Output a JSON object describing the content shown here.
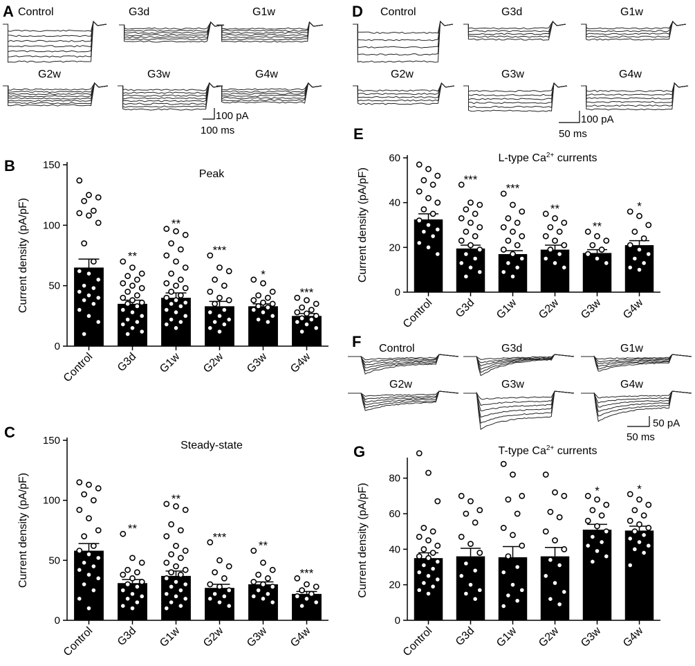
{
  "panels": {
    "A": {
      "letter": "A",
      "trace_labels": [
        "Control",
        "G3d",
        "G1w",
        "G2w",
        "G3w",
        "G4w"
      ],
      "scale": {
        "y": "100 pA",
        "x": "100 ms"
      }
    },
    "D": {
      "letter": "D",
      "trace_labels": [
        "Control",
        "G3d",
        "G1w",
        "G2w",
        "G3w",
        "G4w"
      ],
      "scale": {
        "y": "100 pA",
        "x": "50 ms"
      }
    },
    "F": {
      "letter": "F",
      "trace_labels": [
        "Control",
        "G3d",
        "G1w",
        "G2w",
        "G3w",
        "G4w"
      ],
      "scale": {
        "y": "50 pA",
        "x": "50 ms"
      }
    }
  },
  "chart_data": [
    {
      "id": "B",
      "letter": "B",
      "type": "bar",
      "title": "Peak",
      "ylabel": "Current density (pA/pF)",
      "ylim": [
        0,
        150
      ],
      "yticks": [
        0,
        50,
        100,
        150
      ],
      "categories": [
        "Control",
        "G3d",
        "G1w",
        "G2w",
        "G3w",
        "G4w"
      ],
      "values": [
        65,
        35,
        40,
        33,
        33,
        25
      ],
      "errors": [
        7,
        3,
        4,
        4,
        2,
        2
      ],
      "significance": [
        "",
        "**",
        "**",
        "***",
        "*",
        "***"
      ],
      "points": [
        [
          137,
          125,
          123,
          120,
          112,
          110,
          108,
          102,
          85,
          70,
          62,
          60,
          55,
          50,
          48,
          45,
          42,
          40,
          38,
          35,
          30,
          25,
          20,
          10
        ],
        [
          70,
          65,
          60,
          58,
          55,
          52,
          50,
          48,
          45,
          42,
          40,
          38,
          36,
          35,
          33,
          30,
          28,
          25,
          22,
          20,
          18,
          15,
          12,
          10
        ],
        [
          97,
          95,
          92,
          85,
          80,
          75,
          70,
          65,
          60,
          55,
          52,
          50,
          48,
          45,
          42,
          40,
          38,
          36,
          35,
          33,
          30,
          28,
          25,
          22,
          20,
          18,
          15
        ],
        [
          75,
          65,
          62,
          55,
          50,
          45,
          40,
          38,
          35,
          30,
          28,
          25,
          22,
          20,
          18,
          15,
          12
        ],
        [
          55,
          52,
          45,
          42,
          40,
          38,
          36,
          35,
          33,
          32,
          30,
          28,
          25,
          22,
          20
        ],
        [
          40,
          38,
          35,
          32,
          30,
          28,
          27,
          25,
          23,
          22,
          20,
          18,
          15,
          12
        ]
      ]
    },
    {
      "id": "C",
      "letter": "C",
      "type": "bar",
      "title": "Steady-state",
      "ylabel": "Current density (pA/pF)",
      "ylim": [
        0,
        150
      ],
      "yticks": [
        0,
        50,
        100,
        150
      ],
      "categories": [
        "Control",
        "G3d",
        "G1w",
        "G2w",
        "G3w",
        "G4w"
      ],
      "values": [
        58,
        31,
        37,
        27,
        30,
        22
      ],
      "errors": [
        6,
        3,
        4,
        3,
        2,
        2
      ],
      "significance": [
        "",
        "**",
        "**",
        "***",
        "**",
        "***"
      ],
      "points": [
        [
          115,
          113,
          110,
          105,
          100,
          92,
          85,
          75,
          70,
          62,
          58,
          55,
          52,
          48,
          45,
          42,
          38,
          35,
          30,
          25,
          18,
          10
        ],
        [
          72,
          52,
          48,
          42,
          40,
          38,
          35,
          32,
          30,
          28,
          25,
          22,
          20,
          18,
          15,
          12,
          10
        ],
        [
          97,
          95,
          92,
          80,
          75,
          70,
          62,
          58,
          55,
          52,
          48,
          45,
          42,
          40,
          38,
          35,
          32,
          30,
          28,
          25,
          22,
          20,
          18,
          15,
          12,
          10
        ],
        [
          65,
          50,
          45,
          40,
          35,
          30,
          28,
          25,
          22,
          20,
          18,
          15,
          12
        ],
        [
          58,
          48,
          42,
          38,
          35,
          32,
          30,
          28,
          25,
          22,
          20,
          18,
          15
        ],
        [
          35,
          30,
          28,
          25,
          22,
          20,
          18,
          15,
          12
        ]
      ]
    },
    {
      "id": "E",
      "letter": "E",
      "type": "bar",
      "title": "L-type Ca",
      "title_sup": "2+",
      "title_tail": " currents",
      "ylabel": "Current density (pA/pF)",
      "ylim": [
        0,
        60
      ],
      "yticks": [
        0,
        20,
        40,
        60
      ],
      "categories": [
        "Control",
        "G3d",
        "G1w",
        "G2w",
        "G3w",
        "G4w"
      ],
      "values": [
        32.5,
        19.5,
        17,
        19,
        17.5,
        21
      ],
      "errors": [
        2.5,
        1.5,
        1.5,
        2,
        1.5,
        2
      ],
      "significance": [
        "",
        "***",
        "***",
        "**",
        "**",
        "*"
      ],
      "points": [
        [
          57,
          55,
          52,
          50,
          48,
          45,
          42,
          40,
          37,
          35,
          32,
          30,
          28,
          27,
          25,
          22,
          20,
          17
        ],
        [
          48,
          40,
          39,
          37,
          35,
          33,
          31,
          29,
          27,
          25,
          23,
          21,
          19,
          17,
          15,
          13,
          11,
          9,
          7
        ],
        [
          44,
          39,
          36,
          33,
          31,
          29,
          27,
          25,
          23,
          21,
          19,
          17,
          15,
          13,
          11,
          9,
          7
        ],
        [
          35,
          33,
          31,
          29,
          27,
          25,
          23,
          21,
          19,
          17,
          15,
          13,
          11
        ],
        [
          27,
          25,
          23,
          21,
          19,
          17,
          15,
          13
        ],
        [
          36,
          34,
          30,
          27,
          24,
          21,
          19,
          17,
          15,
          13,
          11,
          10
        ]
      ]
    },
    {
      "id": "G",
      "letter": "G",
      "type": "bar",
      "title": "T-type Ca",
      "title_sup": "2+",
      "title_tail": " currents",
      "ylabel": "Current density (pA/pF)",
      "ylim": [
        0,
        90
      ],
      "yticks": [
        0,
        20,
        40,
        60,
        80
      ],
      "categories": [
        "Control",
        "G3d",
        "G1w",
        "G2w",
        "G3w",
        "G4w"
      ],
      "values": [
        35,
        36,
        35.5,
        36,
        51,
        50.5
      ],
      "errors": [
        3,
        4.5,
        6,
        5,
        3,
        2.5
      ],
      "significance": [
        "",
        "",
        "",
        "",
        "*",
        "*"
      ],
      "points": [
        [
          94,
          83,
          67,
          52,
          50,
          47,
          45,
          42,
          40,
          38,
          36,
          35,
          33,
          31,
          29,
          27,
          25,
          23,
          21,
          19,
          17,
          15
        ],
        [
          70,
          67,
          62,
          60,
          55,
          47,
          43,
          38,
          32,
          28,
          25,
          20,
          17,
          15,
          12
        ],
        [
          88,
          82,
          70,
          68,
          60,
          52,
          48,
          42,
          36,
          30,
          27,
          20,
          17,
          14,
          11,
          8
        ],
        [
          82,
          72,
          70,
          61,
          58,
          50,
          45,
          40,
          34,
          31,
          25,
          21,
          16,
          12,
          9
        ],
        [
          70,
          68,
          65,
          62,
          59,
          56,
          53,
          50,
          47,
          44,
          42,
          39,
          36,
          33
        ],
        [
          71,
          68,
          65,
          62,
          59,
          56,
          54,
          52,
          50,
          48,
          46,
          44,
          42,
          40,
          38,
          31
        ]
      ]
    }
  ]
}
